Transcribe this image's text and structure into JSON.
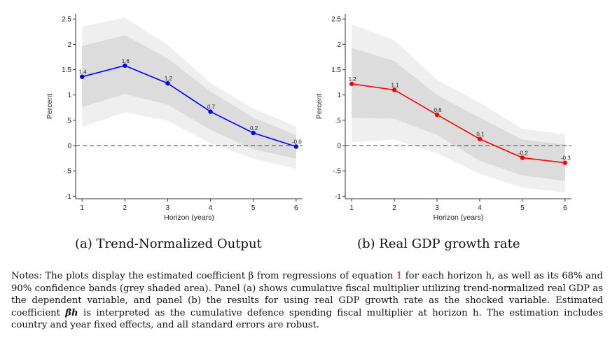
{
  "chart_data": [
    {
      "type": "line",
      "panel": "a",
      "caption": "(a) Trend-Normalized Output",
      "xlabel": "Horizon (years)",
      "ylabel": "Percent",
      "x": [
        1,
        2,
        3,
        4,
        5,
        6
      ],
      "xticks": [
        "1",
        "2",
        "3",
        "4",
        "5",
        "6"
      ],
      "yticks": [
        "-1",
        "-.5",
        "0",
        ".5",
        "1",
        "1.5",
        "2",
        "2.5"
      ],
      "ytick_values": [
        -1,
        -0.5,
        0,
        0.5,
        1,
        1.5,
        2,
        2.5
      ],
      "ylim": [
        -1.05,
        2.6
      ],
      "xlim": [
        0.85,
        6.15
      ],
      "values": [
        1.36,
        1.58,
        1.23,
        0.67,
        0.25,
        -0.02
      ],
      "data_labels": [
        "1.4",
        "1.6",
        "1.2",
        "0.7",
        "0.2",
        "-0.0"
      ],
      "band68_upper": [
        1.97,
        2.18,
        1.72,
        1.07,
        0.55,
        0.21
      ],
      "band68_lower": [
        0.76,
        1.02,
        0.81,
        0.31,
        -0.07,
        -0.26
      ],
      "band90_upper": [
        2.35,
        2.53,
        1.99,
        1.24,
        0.73,
        0.38
      ],
      "band90_lower": [
        0.37,
        0.66,
        0.49,
        0.05,
        -0.26,
        -0.46
      ],
      "zero_line": "dashed",
      "grid": false,
      "line_color": "#0000ff"
    },
    {
      "type": "line",
      "panel": "b",
      "caption": "(b) Real GDP growth rate",
      "xlabel": "Horizon (years)",
      "ylabel": "Percent",
      "x": [
        1,
        2,
        3,
        4,
        5,
        6
      ],
      "xticks": [
        "1",
        "2",
        "3",
        "4",
        "5",
        "6"
      ],
      "yticks": [
        "-1",
        "-.5",
        "0",
        ".5",
        "1",
        "1.5",
        "2",
        "2.5"
      ],
      "ytick_values": [
        -1,
        -0.5,
        0,
        0.5,
        1,
        1.5,
        2,
        2.5
      ],
      "ylim": [
        -1.05,
        2.6
      ],
      "xlim": [
        0.85,
        6.15
      ],
      "values": [
        1.22,
        1.1,
        0.61,
        0.13,
        -0.24,
        -0.34
      ],
      "data_labels": [
        "1.2",
        "1.1",
        "0.6",
        "0.1",
        "-0.2",
        "-0.3"
      ],
      "band68_upper": [
        1.93,
        1.67,
        1.0,
        0.55,
        0.12,
        0.02
      ],
      "band68_lower": [
        0.55,
        0.53,
        0.21,
        -0.3,
        -0.59,
        -0.7
      ],
      "band90_upper": [
        2.4,
        2.08,
        1.3,
        0.85,
        0.33,
        0.22
      ],
      "band90_lower": [
        0.06,
        0.12,
        -0.15,
        -0.56,
        -0.83,
        -0.93
      ],
      "zero_line": "dashed",
      "grid": false,
      "line_color": "#ff0000"
    }
  ],
  "captions": {
    "a": "(a) Trend-Normalized Output",
    "b": "(b) Real GDP growth rate"
  },
  "notes": {
    "p1": "Notes: The plots display the estimated coefficient β from regressions of equation ",
    "eq_ref": "1",
    "p2": " for each horizon h, as well as its 68% and 90% confidence bands (grey shaded area). Panel (a) shows cumulative fiscal multiplier utilizing trend-normalized real GDP as the dependent variable, and panel (b) the results for using real GDP growth rate as the shocked variable. Estimated coefficient ",
    "coef": "β̂h",
    "p3": " is interpreted as the cumulative defence spending fiscal multiplier at horizon h. The estimation includes country and year fixed effects, and all standard errors are robust."
  }
}
